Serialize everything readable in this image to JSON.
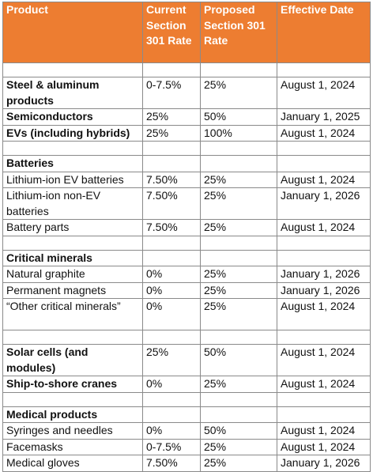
{
  "table": {
    "headers": [
      "Product",
      "Current Section 301 Rate",
      "Proposed Section 301 Rate",
      "Effective Date"
    ],
    "rows": [
      {
        "type": "blank"
      },
      {
        "type": "data",
        "bold": true,
        "product": "Steel & aluminum products",
        "current": "0-7.5%",
        "proposed": "25%",
        "date": "August 1, 2024"
      },
      {
        "type": "data",
        "bold": true,
        "product": "Semiconductors",
        "current": "25%",
        "proposed": "50%",
        "date": "January 1, 2025"
      },
      {
        "type": "data",
        "bold": true,
        "product": "EVs (including hybrids)",
        "current": "25%",
        "proposed": "100%",
        "date": "August 1, 2024"
      },
      {
        "type": "blank"
      },
      {
        "type": "section",
        "product": "Batteries"
      },
      {
        "type": "data",
        "bold": false,
        "product": "Lithium-ion EV batteries",
        "current": "7.50%",
        "proposed": "25%",
        "date": "August 1, 2024"
      },
      {
        "type": "data",
        "bold": false,
        "product": "Lithium-ion non-EV batteries",
        "current": "7.50%",
        "proposed": "25%",
        "date": "January 1, 2026"
      },
      {
        "type": "data",
        "bold": false,
        "product": "Battery parts",
        "current": "7.50%",
        "proposed": "25%",
        "date": "August 1, 2024"
      },
      {
        "type": "blank"
      },
      {
        "type": "section",
        "product": "Critical minerals"
      },
      {
        "type": "data",
        "bold": false,
        "product": "Natural graphite",
        "current": "0%",
        "proposed": "25%",
        "date": "January 1, 2026"
      },
      {
        "type": "data",
        "bold": false,
        "product": "Permanent magnets",
        "current": "0%",
        "proposed": "25%",
        "date": "January 1, 2026"
      },
      {
        "type": "data",
        "bold": false,
        "product": "“Other critical minerals”",
        "current": "0%",
        "proposed": "25%",
        "date": "August 1, 2024"
      },
      {
        "type": "blank"
      },
      {
        "type": "data",
        "bold": true,
        "product": "Solar cells (and modules)",
        "current": "25%",
        "proposed": "50%",
        "date": "August 1, 2024"
      },
      {
        "type": "data",
        "bold": true,
        "product": "Ship-to-shore cranes",
        "current": "0%",
        "proposed": "25%",
        "date": "August 1, 2024"
      },
      {
        "type": "blank"
      },
      {
        "type": "section",
        "product": "Medical products"
      },
      {
        "type": "data",
        "bold": false,
        "product": "Syringes and needles",
        "current": "0%",
        "proposed": "50%",
        "date": "August 1, 2024"
      },
      {
        "type": "data",
        "bold": false,
        "product": "Facemasks",
        "current": "0-7.5%",
        "proposed": "25%",
        "date": "August 1, 2024"
      },
      {
        "type": "data",
        "bold": false,
        "product": "Medical gloves",
        "current": "7.50%",
        "proposed": "25%",
        "date": "January 1, 2026"
      }
    ]
  },
  "colors": {
    "header_bg": "#ed7d31",
    "header_text": "#ffffff",
    "border": "#8a8a8a",
    "text": "#111111"
  }
}
